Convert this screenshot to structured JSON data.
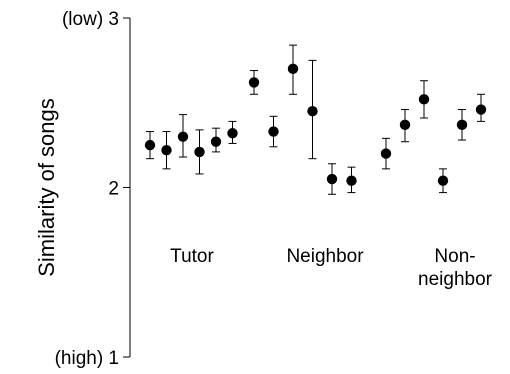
{
  "chart_data": {
    "type": "scatter",
    "title": "",
    "ylabel": "Similarity of songs",
    "xlabel": "",
    "ylim": [
      1,
      3
    ],
    "yticks": [
      {
        "value": 3,
        "label": "(low) 3"
      },
      {
        "value": 2,
        "label": "2"
      },
      {
        "value": 1,
        "label": "(high) 1"
      }
    ],
    "grid": false,
    "legend": "none",
    "groups": [
      {
        "label_lines": [
          "Tutor"
        ],
        "points": [
          {
            "y": 2.25,
            "err_low": 2.17,
            "err_high": 2.33
          },
          {
            "y": 2.22,
            "err_low": 2.11,
            "err_high": 2.33
          },
          {
            "y": 2.3,
            "err_low": 2.18,
            "err_high": 2.43
          },
          {
            "y": 2.21,
            "err_low": 2.08,
            "err_high": 2.34
          },
          {
            "y": 2.27,
            "err_low": 2.21,
            "err_high": 2.35
          },
          {
            "y": 2.32,
            "err_low": 2.26,
            "err_high": 2.39
          }
        ]
      },
      {
        "label_lines": [
          "Neighbor"
        ],
        "points": [
          {
            "y": 2.62,
            "err_low": 2.55,
            "err_high": 2.69
          },
          {
            "y": 2.33,
            "err_low": 2.24,
            "err_high": 2.42
          },
          {
            "y": 2.7,
            "err_low": 2.55,
            "err_high": 2.84
          },
          {
            "y": 2.45,
            "err_low": 2.17,
            "err_high": 2.75
          },
          {
            "y": 2.05,
            "err_low": 1.96,
            "err_high": 2.14
          },
          {
            "y": 2.04,
            "err_low": 1.97,
            "err_high": 2.12
          }
        ]
      },
      {
        "label_lines": [
          "Non-",
          "neighbor"
        ],
        "points": [
          {
            "y": 2.2,
            "err_low": 2.11,
            "err_high": 2.29
          },
          {
            "y": 2.37,
            "err_low": 2.27,
            "err_high": 2.46
          },
          {
            "y": 2.52,
            "err_low": 2.41,
            "err_high": 2.63
          },
          {
            "y": 2.04,
            "err_low": 1.97,
            "err_high": 2.11
          },
          {
            "y": 2.37,
            "err_low": 2.28,
            "err_high": 2.46
          },
          {
            "y": 2.46,
            "err_low": 2.39,
            "err_high": 2.55
          }
        ]
      }
    ],
    "colors": {
      "marker": "#000000",
      "axis": "#000000",
      "errorbar": "#000000"
    }
  }
}
